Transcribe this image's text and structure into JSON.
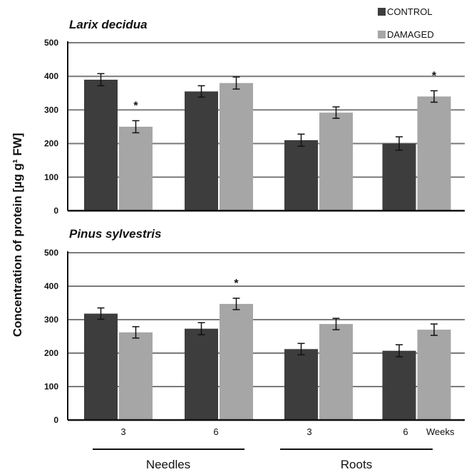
{
  "legend": [
    {
      "label": "CONTROL",
      "color": "#3d3d3d"
    },
    {
      "label": "DAMAGED",
      "color": "#a6a6a6"
    }
  ],
  "ylabel": "Concentration of protein [µg g¹ FW]",
  "x_unit_label": "Weeks",
  "x_tick_labels": [
    "3",
    "6",
    "3",
    "6"
  ],
  "group_labels": [
    "Needles",
    "Roots"
  ],
  "chart_data": [
    {
      "type": "bar",
      "title": "Larix decidua",
      "categories": [
        "Needles 3",
        "Needles 6",
        "Roots 3",
        "Roots 6"
      ],
      "ylim": [
        0,
        500
      ],
      "yticks": [
        0,
        100,
        200,
        300,
        400,
        500
      ],
      "grid": true,
      "series": [
        {
          "name": "CONTROL",
          "values": [
            390,
            355,
            210,
            200
          ],
          "errors": [
            18,
            17,
            18,
            20
          ]
        },
        {
          "name": "DAMAGED",
          "values": [
            250,
            380,
            292,
            340
          ],
          "errors": [
            18,
            18,
            17,
            17
          ]
        }
      ],
      "significance": [
        {
          "category": 0,
          "series": 1,
          "symbol": "*"
        },
        {
          "category": 3,
          "series": 1,
          "symbol": "*"
        }
      ]
    },
    {
      "type": "bar",
      "title": "Pinus sylvestris",
      "categories": [
        "Needles 3",
        "Needles 6",
        "Roots 3",
        "Roots 6"
      ],
      "ylim": [
        0,
        500
      ],
      "yticks": [
        0,
        100,
        200,
        300,
        400,
        500
      ],
      "grid": true,
      "series": [
        {
          "name": "CONTROL",
          "values": [
            318,
            273,
            212,
            207
          ],
          "errors": [
            17,
            18,
            17,
            18
          ]
        },
        {
          "name": "DAMAGED",
          "values": [
            262,
            347,
            287,
            270
          ],
          "errors": [
            17,
            17,
            17,
            17
          ]
        }
      ],
      "significance": [
        {
          "category": 1,
          "series": 1,
          "symbol": "*"
        }
      ]
    }
  ]
}
